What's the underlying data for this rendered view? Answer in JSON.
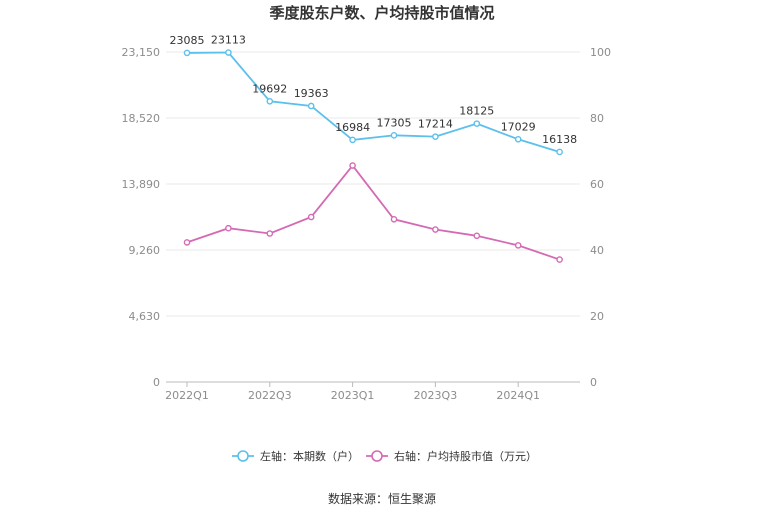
{
  "chart_data": {
    "type": "line",
    "title": "季度股东户数、户均持股市值情况",
    "categories": [
      "2022Q1",
      "2022Q2",
      "2022Q3",
      "2022Q4",
      "2023Q1",
      "2023Q2",
      "2023Q3",
      "2023Q4",
      "2024Q1",
      "2024Q2"
    ],
    "x_tick_labels": [
      "2022Q1",
      "2022Q3",
      "2023Q1",
      "2023Q3",
      "2024Q1"
    ],
    "left_axis": {
      "ylim": [
        0,
        23150
      ],
      "ticks": [
        "0",
        "4,630",
        "9,260",
        "13,890",
        "18,520",
        "23,150"
      ]
    },
    "right_axis": {
      "ylim": [
        0,
        100
      ],
      "ticks": [
        "0",
        "20",
        "40",
        "60",
        "80",
        "100"
      ]
    },
    "grid": "horizontal",
    "legend_position": "bottom",
    "series": [
      {
        "name": "左轴：本期数（户）",
        "axis": "left",
        "color": "#5bc0eb",
        "values": [
          23085,
          23113,
          19692,
          19363,
          16984,
          17305,
          17214,
          18125,
          17029,
          16138
        ],
        "labels": [
          "23085",
          "23113",
          "19692",
          "19363",
          "16984",
          "17305",
          "17214",
          "18125",
          "17029",
          "16138"
        ]
      },
      {
        "name": "右轴：户均持股市值（万元）",
        "axis": "right",
        "color": "#d46ab4",
        "values": [
          42.3,
          46.6,
          45.0,
          50.0,
          65.6,
          49.3,
          46.2,
          44.3,
          41.4,
          37.1
        ]
      }
    ]
  },
  "source": "数据来源：恒生聚源"
}
